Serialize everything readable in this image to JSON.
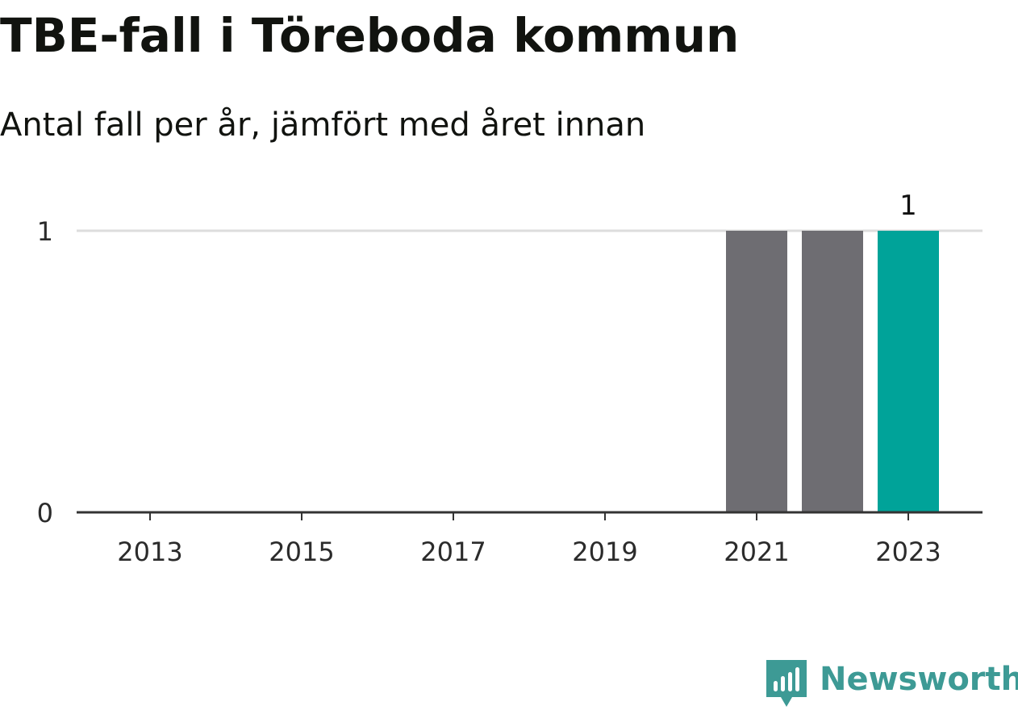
{
  "title": "TBE-fall i Töreboda kommun",
  "subtitle": "Antal fall per år, jämfört med året innan",
  "brand": {
    "name": "Newsworthy",
    "color": "#3d9a95",
    "icon": "newsworthy-logo-icon"
  },
  "colors": {
    "bar_previous": "#6e6d72",
    "bar_current": "#00a399",
    "gridline": "#dddddd",
    "axis": "#333333"
  },
  "chart_data": {
    "type": "bar",
    "title": "TBE-fall i Töreboda kommun",
    "subtitle": "Antal fall per år, jämfört med året innan",
    "xlabel": "",
    "ylabel": "",
    "categories": [
      "2013",
      "2014",
      "2015",
      "2016",
      "2017",
      "2018",
      "2019",
      "2020",
      "2021",
      "2022",
      "2023"
    ],
    "values": [
      0,
      0,
      0,
      0,
      0,
      0,
      0,
      0,
      1,
      1,
      1
    ],
    "highlight": "2023",
    "x_tick_labels": [
      "2013",
      "2015",
      "2017",
      "2019",
      "2021",
      "2023"
    ],
    "y_ticks": [
      "0",
      "1"
    ],
    "ylim": [
      0,
      1
    ],
    "data_labels": [
      {
        "category": "2023",
        "text": "1"
      }
    ],
    "grid": true,
    "legend": "none"
  }
}
